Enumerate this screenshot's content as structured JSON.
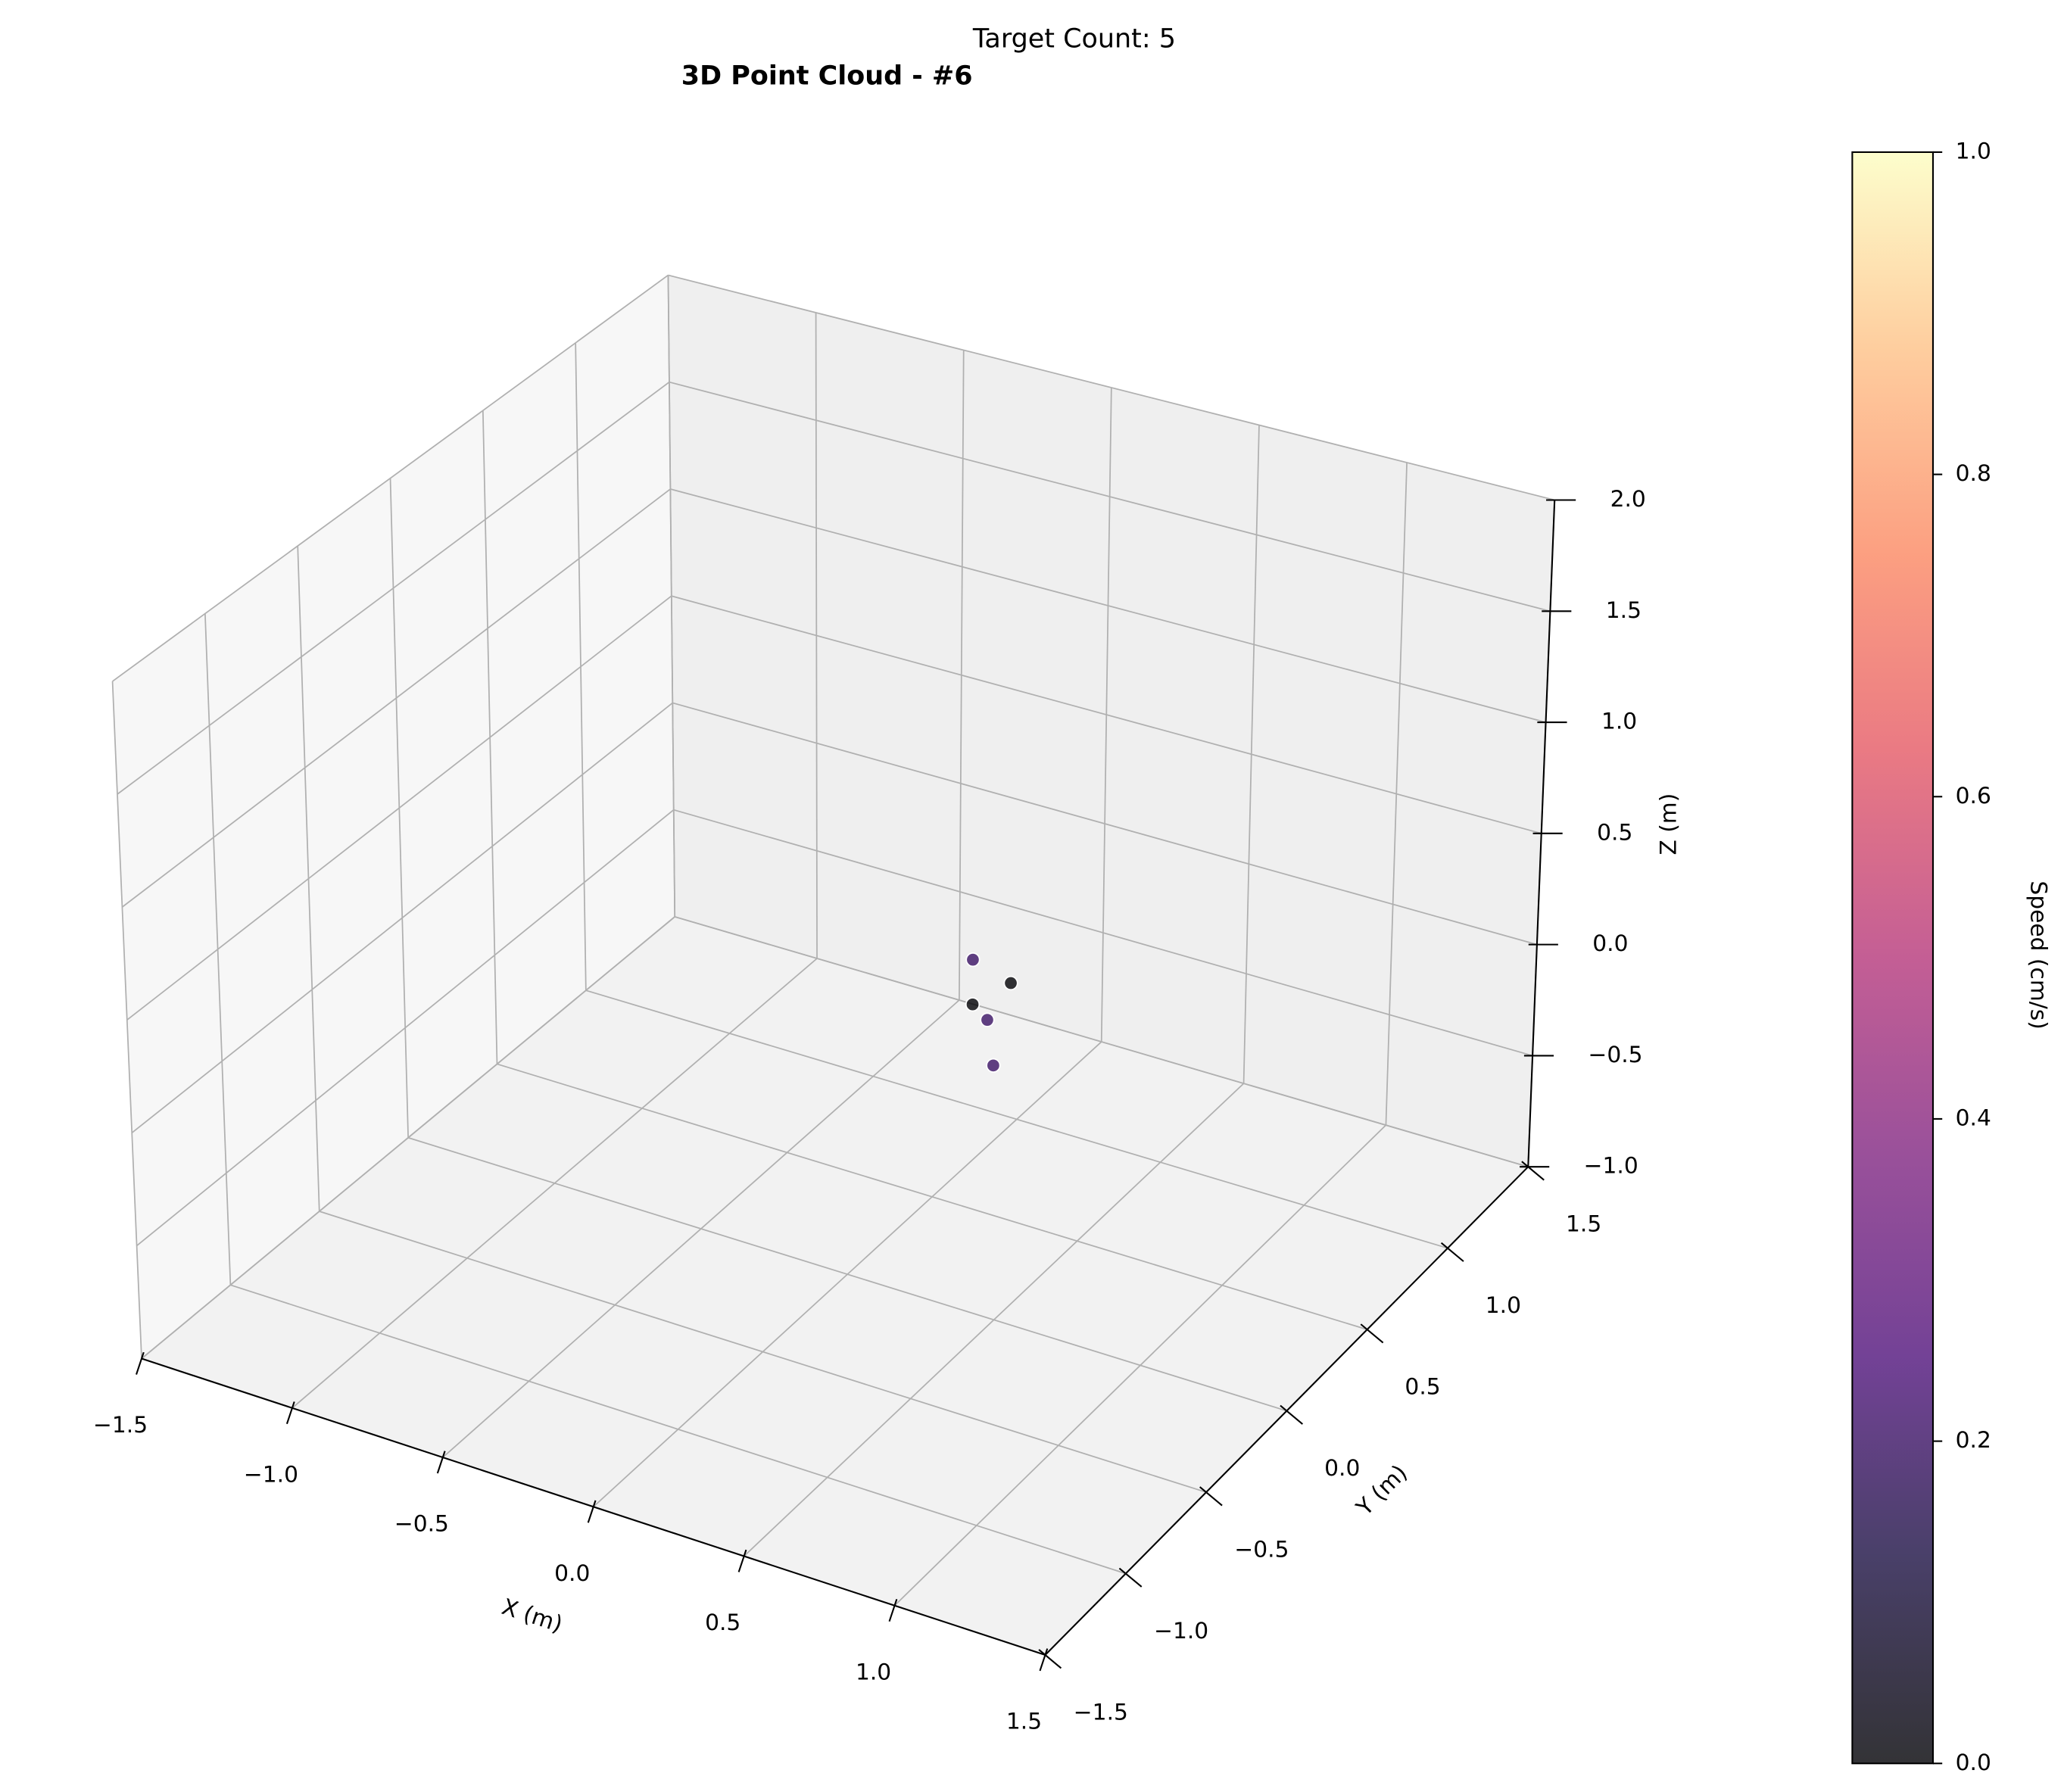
{
  "chart_data": {
    "type": "scatter3d",
    "suptitle": "Target Count: 5",
    "title": "3D Point Cloud - #6",
    "xlabel": "X (m)",
    "ylabel": "Y (m)",
    "zlabel": "Z (m)",
    "x": [
      0.25,
      0.35,
      0.25,
      0.3,
      0.35
    ],
    "y": [
      0.3,
      0.35,
      0.3,
      0.3,
      0.25
    ],
    "z": [
      0.3,
      0.2,
      0.1,
      0.05,
      -0.1
    ],
    "c": [
      0.2,
      0.0,
      0.0,
      0.2,
      0.2
    ],
    "colormap": "magma",
    "alpha": 0.8,
    "xlim": [
      -1.5,
      1.5
    ],
    "ylim": [
      -1.5,
      1.5
    ],
    "zlim": [
      -1,
      2
    ],
    "xticks": [
      {
        "value": -1.5,
        "label": "−1.5"
      },
      {
        "value": -1,
        "label": "−1.0"
      },
      {
        "value": -0.5,
        "label": "−0.5"
      },
      {
        "value": 0,
        "label": "0.0"
      },
      0.5,
      {
        "value": 1,
        "label": "1.0"
      },
      1.5
    ],
    "yticks": [
      {
        "value": -1.5,
        "label": "−1.5"
      },
      {
        "value": -1,
        "label": "−1.0"
      },
      {
        "value": -0.5,
        "label": "−0.5"
      },
      {
        "value": 0,
        "label": "0.0"
      },
      0.5,
      {
        "value": 1,
        "label": "1.0"
      },
      1.5
    ],
    "zticks": [
      {
        "value": -1,
        "label": "−1.0"
      },
      {
        "value": -0.5,
        "label": "−0.5"
      },
      {
        "value": 0,
        "label": "0.0"
      },
      0.5,
      {
        "value": 1,
        "label": "1.0"
      },
      1.5,
      {
        "value": 2,
        "label": "2.0"
      }
    ],
    "clim": [
      0,
      1
    ],
    "cticks": [
      {
        "value": 0,
        "label": "0.0"
      },
      0.2,
      0.4,
      0.6,
      0.8,
      {
        "value": 1,
        "label": "1.0"
      }
    ],
    "colorbar_label": "Speed (cm/s)",
    "grid": true
  }
}
